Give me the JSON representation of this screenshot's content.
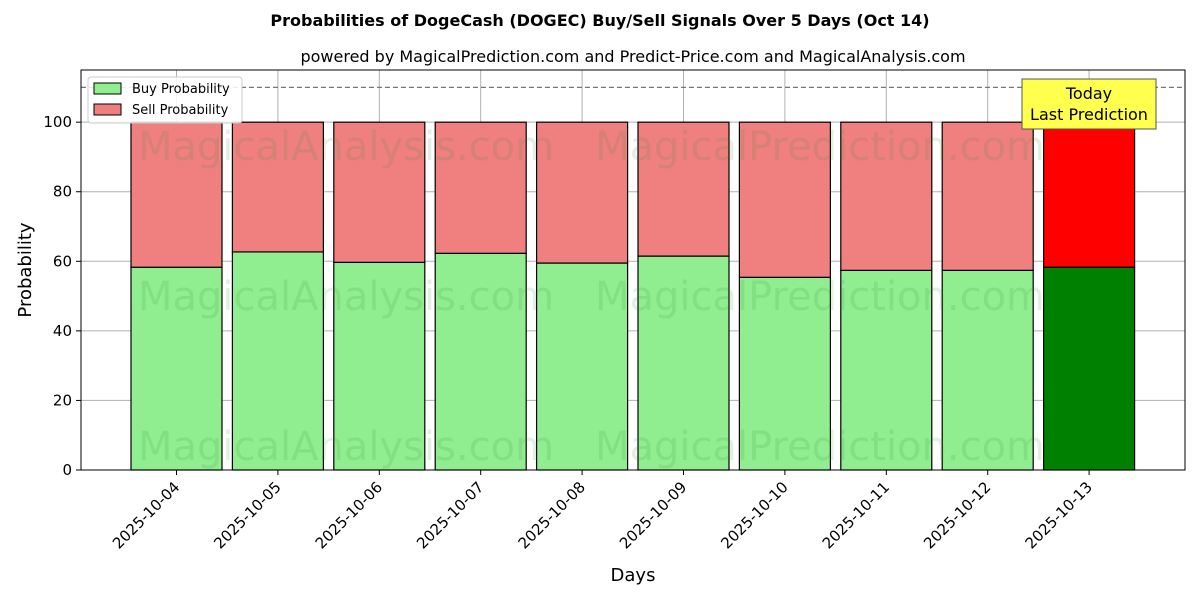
{
  "chart_data": {
    "type": "bar",
    "stacked": true,
    "title": "Probabilities of DogeCash (DOGEC) Buy/Sell Signals Over 5 Days (Oct 14)",
    "subtitle": "powered by MagicalPrediction.com and Predict-Price.com and MagicalAnalysis.com",
    "xlabel": "Days",
    "ylabel": "Probability",
    "ylim": [
      0,
      115
    ],
    "yticks": [
      0,
      20,
      40,
      60,
      80,
      100
    ],
    "grid": true,
    "legend_position": "top-left",
    "reference_line": 110,
    "categories": [
      "2025-10-04",
      "2025-10-05",
      "2025-10-06",
      "2025-10-07",
      "2025-10-08",
      "2025-10-09",
      "2025-10-10",
      "2025-10-11",
      "2025-10-12",
      "2025-10-13"
    ],
    "series": [
      {
        "name": "Buy Probability",
        "color": "#90ee90",
        "highlight_color": "#008000",
        "values": [
          58.3,
          62.7,
          59.7,
          62.3,
          59.5,
          61.5,
          55.4,
          57.4,
          57.4,
          58.3
        ]
      },
      {
        "name": "Sell Probability",
        "color": "#f08080",
        "highlight_color": "#ff0000",
        "values": [
          41.7,
          37.3,
          40.3,
          37.7,
          40.5,
          38.5,
          44.6,
          42.6,
          42.6,
          41.7
        ]
      }
    ],
    "highlight_index": 9,
    "annotation": {
      "lines": [
        "Today",
        "Last Prediction"
      ],
      "background": "#ffff4d"
    },
    "watermarks": [
      "MagicalAnalysis.com",
      "MagicalPrediction.com"
    ]
  }
}
